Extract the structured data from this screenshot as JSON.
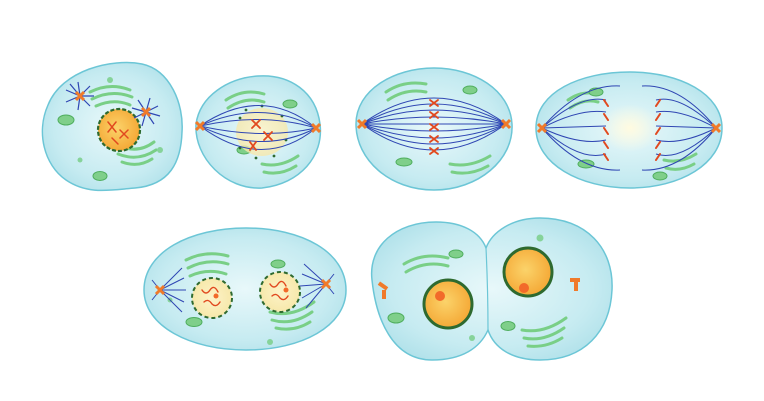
{
  "diagram": {
    "colors": {
      "cell_fill": "#bfe8ef",
      "cell_edge": "#6cc6d6",
      "cell_inner": "#e0f5f7",
      "spindle": "#2f46b3",
      "centrosome": "#f07a2a",
      "chromosome": "#e1491f",
      "nucleus_fill": "#f6b23b",
      "nucleus_edge": "#2e6a2f",
      "golgi": "#8fd79a",
      "golgi_edge": "#57b866",
      "mitochondria": "#7fcf8a",
      "vesicle": "#86d39a",
      "midzone_glow": "#fff7cc",
      "nucleolus": "#f26a2a"
    },
    "stages": [
      {
        "id": "prophase"
      },
      {
        "id": "prometaphase"
      },
      {
        "id": "metaphase"
      },
      {
        "id": "anaphase"
      },
      {
        "id": "telophase"
      },
      {
        "id": "cytokinesis"
      }
    ]
  }
}
